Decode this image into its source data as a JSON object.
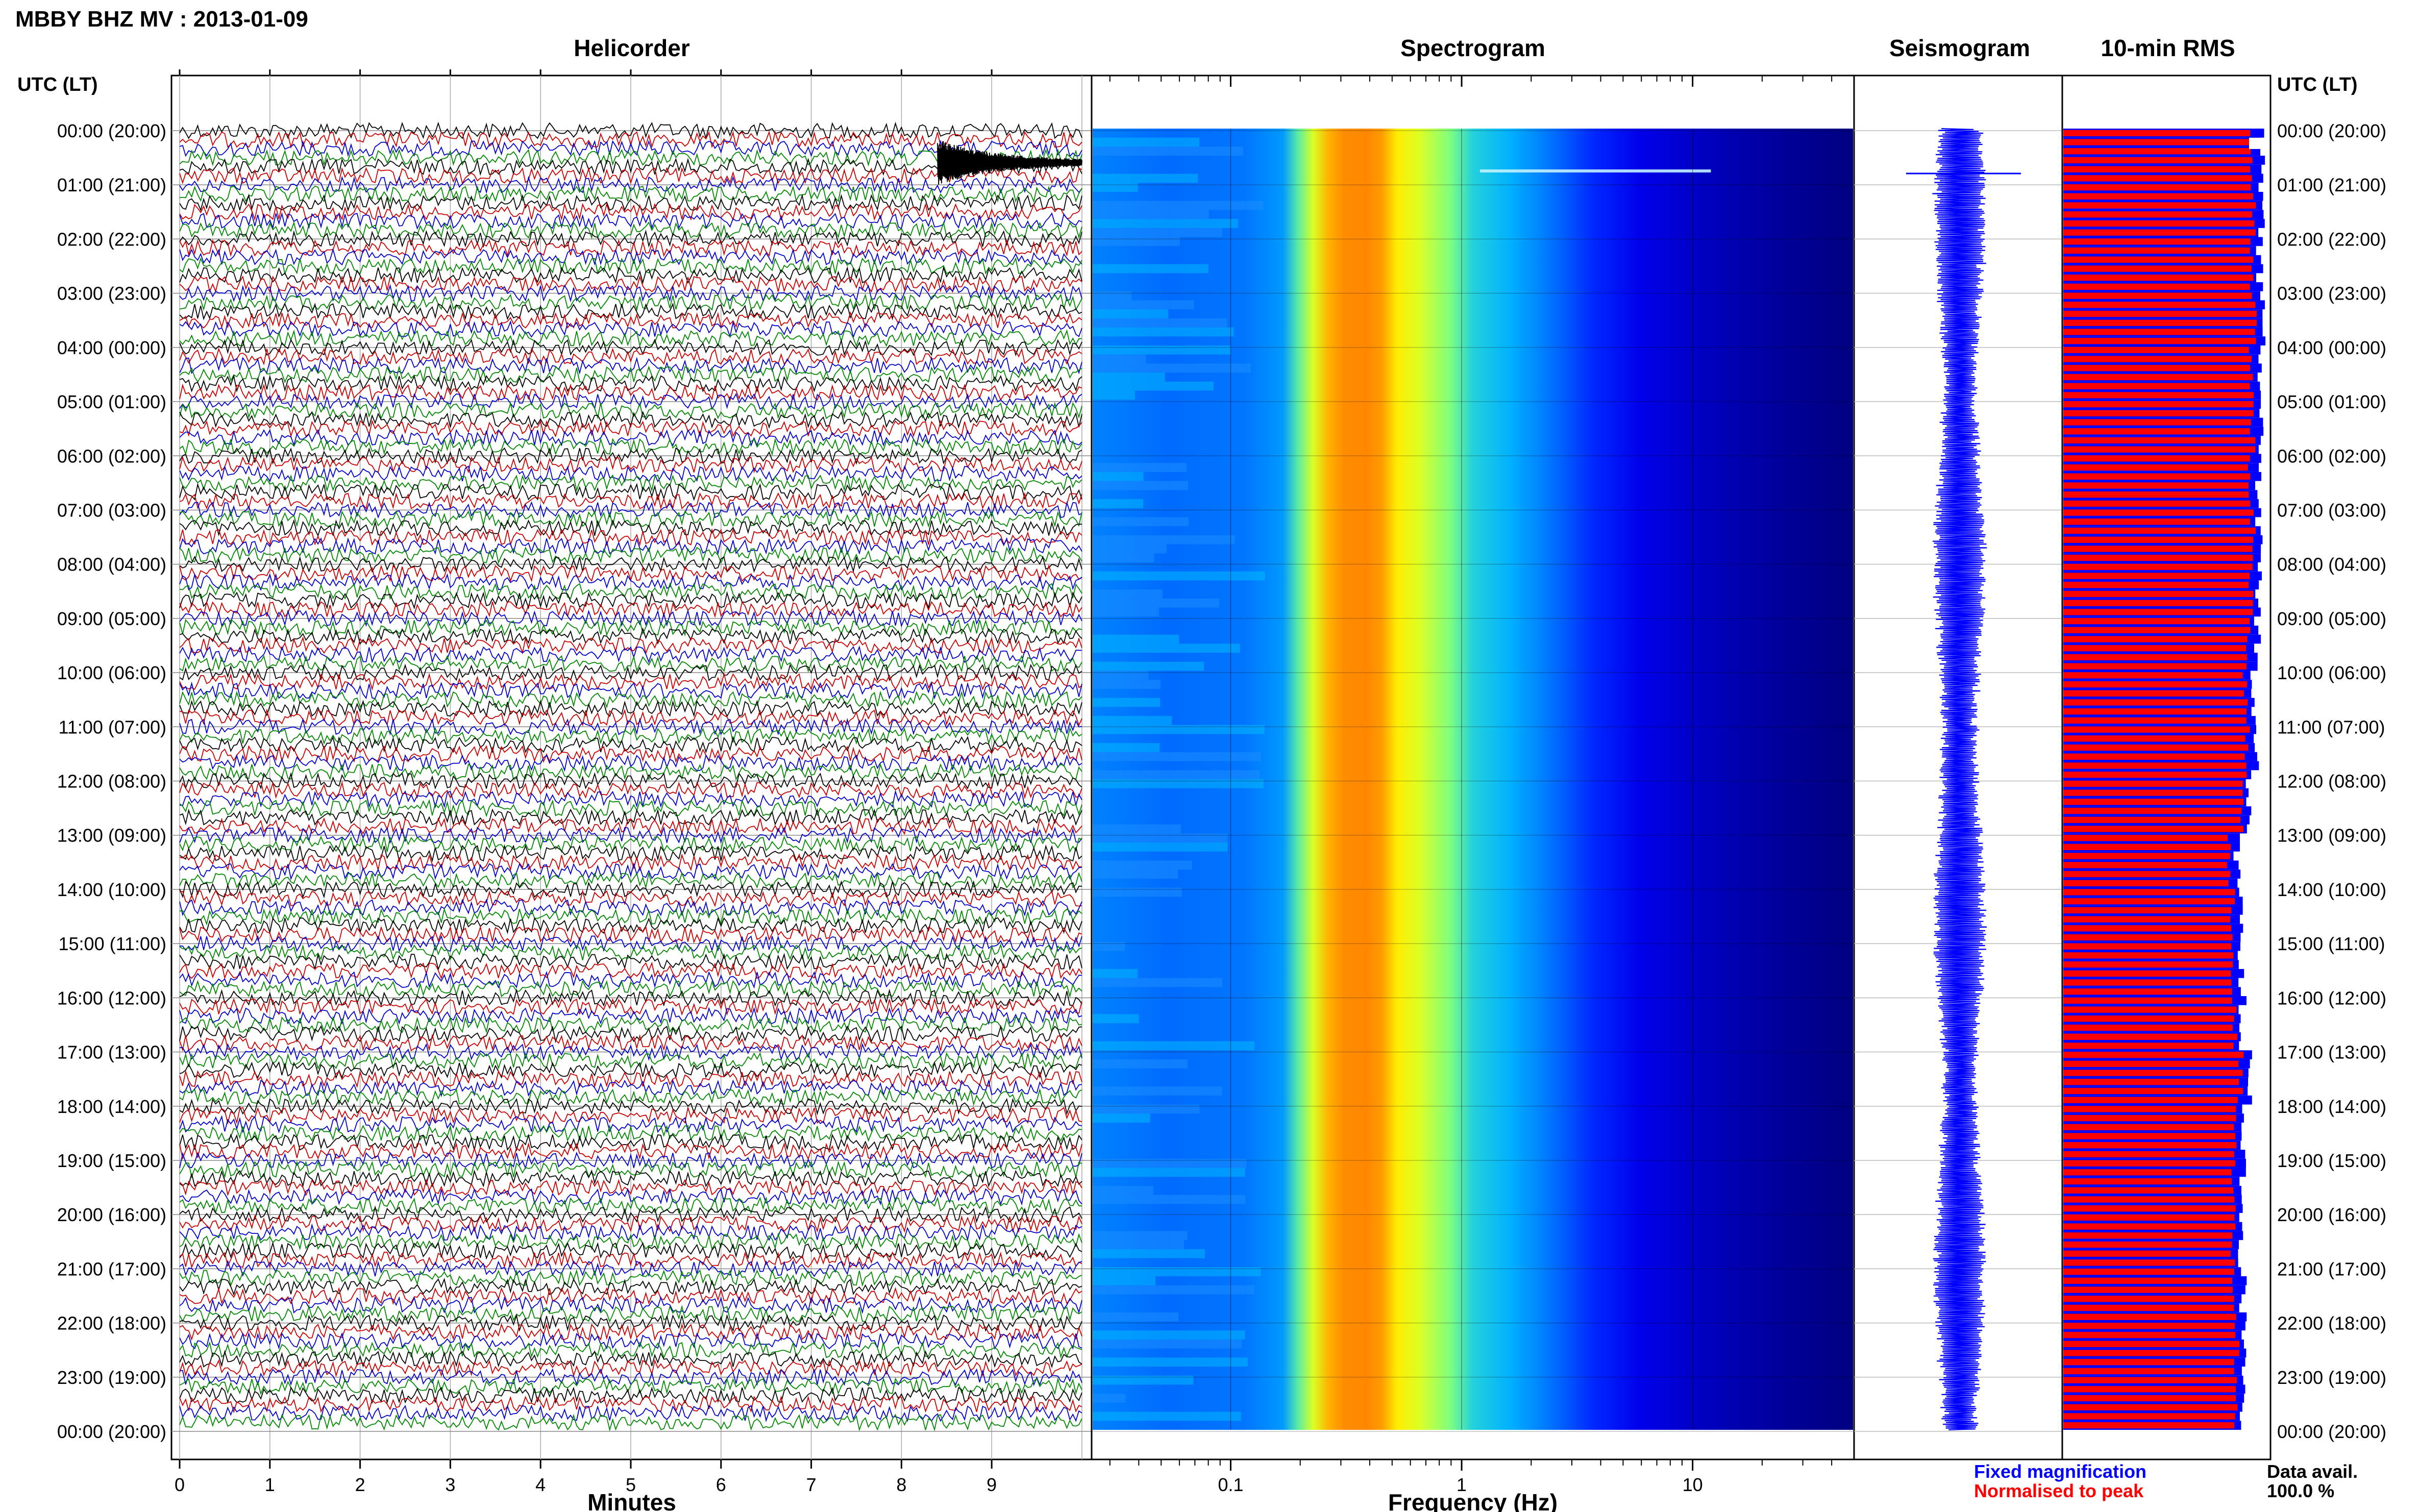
{
  "figure": {
    "title": "MBBY BHZ MV : 2013-01-09",
    "panel_titles": {
      "helicorder": "Helicorder",
      "spectrogram": "Spectrogram",
      "seismogram": "Seismogram",
      "rms": "10-min RMS"
    },
    "left_header": "UTC (LT)",
    "right_header": "UTC (LT)",
    "time_labels": [
      "00:00 (20:00)",
      "01:00 (21:00)",
      "02:00 (22:00)",
      "03:00 (23:00)",
      "04:00 (00:00)",
      "05:00 (01:00)",
      "06:00 (02:00)",
      "07:00 (03:00)",
      "08:00 (04:00)",
      "09:00 (05:00)",
      "10:00 (06:00)",
      "11:00 (07:00)",
      "12:00 (08:00)",
      "13:00 (09:00)",
      "14:00 (10:00)",
      "15:00 (11:00)",
      "16:00 (12:00)",
      "17:00 (13:00)",
      "18:00 (14:00)",
      "19:00 (15:00)",
      "20:00 (16:00)",
      "21:00 (17:00)",
      "22:00 (18:00)",
      "23:00 (19:00)",
      "00:00 (20:00)"
    ],
    "legend": {
      "fixed": "Fixed magnification",
      "normalised": "Normalised to peak",
      "fixed_color": "#0000ff",
      "normalised_color": "#ff0000"
    },
    "data_avail_label": "Data avail.",
    "data_avail_value": "100.0 %"
  },
  "chart_data": [
    {
      "type": "line",
      "name": "Helicorder",
      "title": "Helicorder",
      "xlabel": "Minutes",
      "x_ticks": [
        "0",
        "1",
        "2",
        "3",
        "4",
        "5",
        "6",
        "7",
        "8",
        "9"
      ],
      "xlim": [
        0,
        10
      ],
      "rows": 144,
      "row_minutes": 10,
      "trace_colors": [
        "#000000",
        "#cc0000",
        "#0000cc",
        "#008800"
      ],
      "event": {
        "row": 1,
        "start_min": 8.4,
        "end_min": 10.0
      }
    },
    {
      "type": "heatmap",
      "name": "Spectrogram",
      "title": "Spectrogram",
      "xlabel": "Frequency (Hz)",
      "x_ticks": [
        "0.1",
        "1",
        "10"
      ],
      "x_scale": "log",
      "xlim": [
        0.025,
        50
      ],
      "peak_band_hz": [
        0.2,
        0.45
      ],
      "colormap": [
        "#00007f",
        "#0000ff",
        "#00bfff",
        "#7fff7f",
        "#ffff00",
        "#ff9f00",
        "#ff3000"
      ]
    },
    {
      "type": "line",
      "name": "Seismogram",
      "title": "Seismogram",
      "color": "#0000ff"
    },
    {
      "type": "bar",
      "name": "10-min RMS",
      "title": "10-min RMS",
      "bar_count": 144,
      "series": [
        {
          "name": "Fixed magnification",
          "color": "#0000ff"
        },
        {
          "name": "Normalised to peak",
          "color": "#ff0000"
        }
      ],
      "hourly_fixed_fraction": [
        0.96,
        0.96,
        0.95,
        0.97,
        0.95,
        0.96,
        0.95,
        0.95,
        0.95,
        0.94,
        0.92,
        0.93,
        0.9,
        0.84,
        0.86,
        0.86,
        0.87,
        0.91,
        0.88,
        0.87,
        0.86,
        0.87,
        0.88,
        0.87
      ],
      "hourly_red_fraction": [
        0.92,
        0.92,
        0.91,
        0.93,
        0.91,
        0.92,
        0.91,
        0.92,
        0.91,
        0.9,
        0.88,
        0.89,
        0.86,
        0.8,
        0.82,
        0.82,
        0.83,
        0.86,
        0.84,
        0.83,
        0.82,
        0.83,
        0.84,
        0.83
      ]
    }
  ]
}
